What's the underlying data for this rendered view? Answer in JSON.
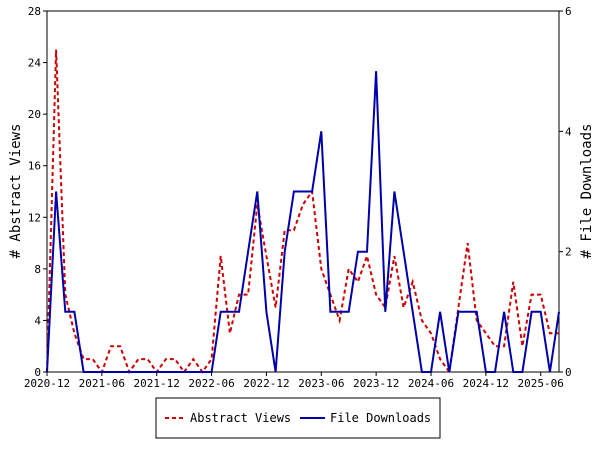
{
  "chart_data": {
    "type": "line",
    "xlabel": "",
    "ylabel": "# Abstract Views",
    "y2label": "# File Downloads",
    "x_tick_labels": [
      "2020-12",
      "2021-06",
      "2021-12",
      "2022-06",
      "2022-12",
      "2023-06",
      "2023-12",
      "2024-06",
      "2024-12",
      "2025-06"
    ],
    "ylim": [
      0,
      28
    ],
    "y_ticks": [
      0,
      4,
      8,
      12,
      16,
      20,
      24,
      28
    ],
    "y2lim": [
      0,
      6
    ],
    "y2_ticks": [
      0,
      2,
      4,
      6
    ],
    "grid": false,
    "legend_position": "bottom",
    "x": [
      "2020-12",
      "2021-01",
      "2021-02",
      "2021-03",
      "2021-04",
      "2021-05",
      "2021-06",
      "2021-07",
      "2021-08",
      "2021-09",
      "2021-10",
      "2021-11",
      "2021-12",
      "2022-01",
      "2022-02",
      "2022-03",
      "2022-04",
      "2022-05",
      "2022-06",
      "2022-07",
      "2022-08",
      "2022-09",
      "2022-10",
      "2022-11",
      "2022-12",
      "2023-01",
      "2023-02",
      "2023-03",
      "2023-04",
      "2023-05",
      "2023-06",
      "2023-07",
      "2023-08",
      "2023-09",
      "2023-10",
      "2023-11",
      "2023-12",
      "2024-01",
      "2024-02",
      "2024-03",
      "2024-04",
      "2024-05",
      "2024-06",
      "2024-07",
      "2024-08",
      "2024-09",
      "2024-10",
      "2024-11",
      "2024-12",
      "2025-01",
      "2025-02",
      "2025-03",
      "2025-04",
      "2025-05",
      "2025-06",
      "2025-07",
      "2025-08"
    ],
    "series": [
      {
        "name": "Abstract Views",
        "axis": "left",
        "color": "#cc0000",
        "dash": true,
        "values": [
          0,
          25,
          6,
          3,
          1,
          1,
          0,
          2,
          2,
          0,
          1,
          1,
          0,
          1,
          1,
          0,
          1,
          0,
          1,
          9,
          3,
          6,
          6,
          13,
          9,
          5,
          11,
          11,
          13,
          14,
          8,
          6,
          4,
          8,
          7,
          9,
          6,
          5,
          9,
          5,
          7,
          4,
          3,
          1,
          0,
          5,
          10,
          4,
          3,
          2,
          2,
          7,
          2,
          6,
          6,
          3,
          3
        ]
      },
      {
        "name": "File Downloads",
        "axis": "right",
        "color": "#0000aa",
        "dash": false,
        "values": [
          0,
          3,
          1,
          1,
          0,
          0,
          0,
          0,
          0,
          0,
          0,
          0,
          0,
          0,
          0,
          0,
          0,
          0,
          0,
          1,
          1,
          1,
          2,
          3,
          1,
          0,
          2,
          3,
          3,
          3,
          4,
          1,
          1,
          1,
          2,
          2,
          5,
          1,
          3,
          2,
          1,
          0,
          0,
          1,
          0,
          1,
          1,
          1,
          0,
          0,
          1,
          0,
          0,
          1,
          1,
          0,
          1
        ]
      }
    ]
  }
}
